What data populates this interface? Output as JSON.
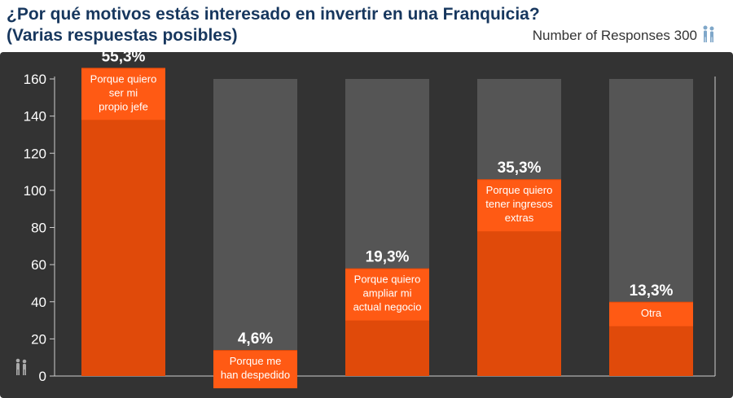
{
  "header": {
    "title_line1": "¿Por qué motivos estás interesado en invertir en una Franquicia?",
    "title_line2": "(Varias respuestas posibles)",
    "responses_text": "Number of Responses 300"
  },
  "colors": {
    "background": "#333333",
    "column_bg": "#555555",
    "bar": "#e04a0a",
    "label_box": "#ff5a14",
    "title": "#17375e",
    "text": "#ffffff"
  },
  "icons": [
    "people-icon"
  ],
  "chart_data": {
    "type": "bar",
    "title": "¿Por qué motivos estás interesado en invertir en una Franquicia?",
    "subtitle": "(Varias respuestas posibles)",
    "ylim": [
      0,
      160
    ],
    "yticks": [
      "0",
      "20",
      "40",
      "60",
      "80",
      "100",
      "120",
      "140",
      "160"
    ],
    "grid": false,
    "categories": [
      "Porque quiero ser mi propio jefe",
      "Porque me han despedido",
      "Porque quiero ampliar mi actual negocio",
      "Porque quiero tener ingresos extras",
      "Otra"
    ],
    "category_lines": [
      [
        "Porque quiero",
        "ser mi",
        "propio jefe"
      ],
      [
        "Porque me",
        "han despedido"
      ],
      [
        "Porque quiero",
        "ampliar mi",
        "actual negocio"
      ],
      [
        "Porque quiero",
        "tener ingresos",
        "extras"
      ],
      [
        "Otra"
      ]
    ],
    "values": [
      166,
      14,
      58,
      106,
      40
    ],
    "value_labels": [
      "55,3%",
      "4,6%",
      "19,3%",
      "35,3%",
      "13,3%"
    ]
  }
}
